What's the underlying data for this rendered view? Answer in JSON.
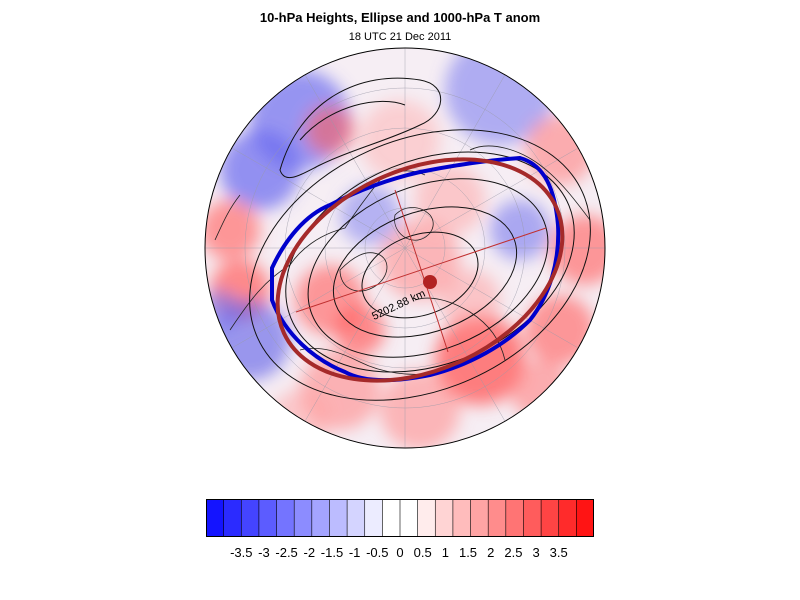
{
  "title": "10-hPa Heights, Ellipse and 1000-hPa T anom",
  "subtitle": "18 UTC 21 Dec 2011",
  "map": {
    "projection": "north-polar-stereographic",
    "contour_label": "5202.88 km",
    "ellipse_center_marker": "filled-circle",
    "colors": {
      "fitted_ellipse": "#a52a2a",
      "contour_10hpa": "#0000cc",
      "ocean_background": "#f3eef8"
    }
  },
  "colorbar": {
    "labels": [
      "-3.5",
      "-3",
      "-2.5",
      "-2",
      "-1.5",
      "-1",
      "-0.5",
      "0",
      "0.5",
      "1",
      "1.5",
      "2",
      "2.5",
      "3",
      "3.5"
    ],
    "colors": [
      "#1414ff",
      "#2b2bff",
      "#4444ff",
      "#5c5cff",
      "#7474ff",
      "#8c8cff",
      "#a4a4ff",
      "#bcbcff",
      "#d4d4ff",
      "#ececff",
      "#ffffff",
      "#ffffff",
      "#ffecec",
      "#ffd4d4",
      "#ffbcbc",
      "#ffa4a4",
      "#ff8c8c",
      "#ff7474",
      "#ff5c5c",
      "#ff4444",
      "#ff2b2b",
      "#ff1414"
    ]
  }
}
